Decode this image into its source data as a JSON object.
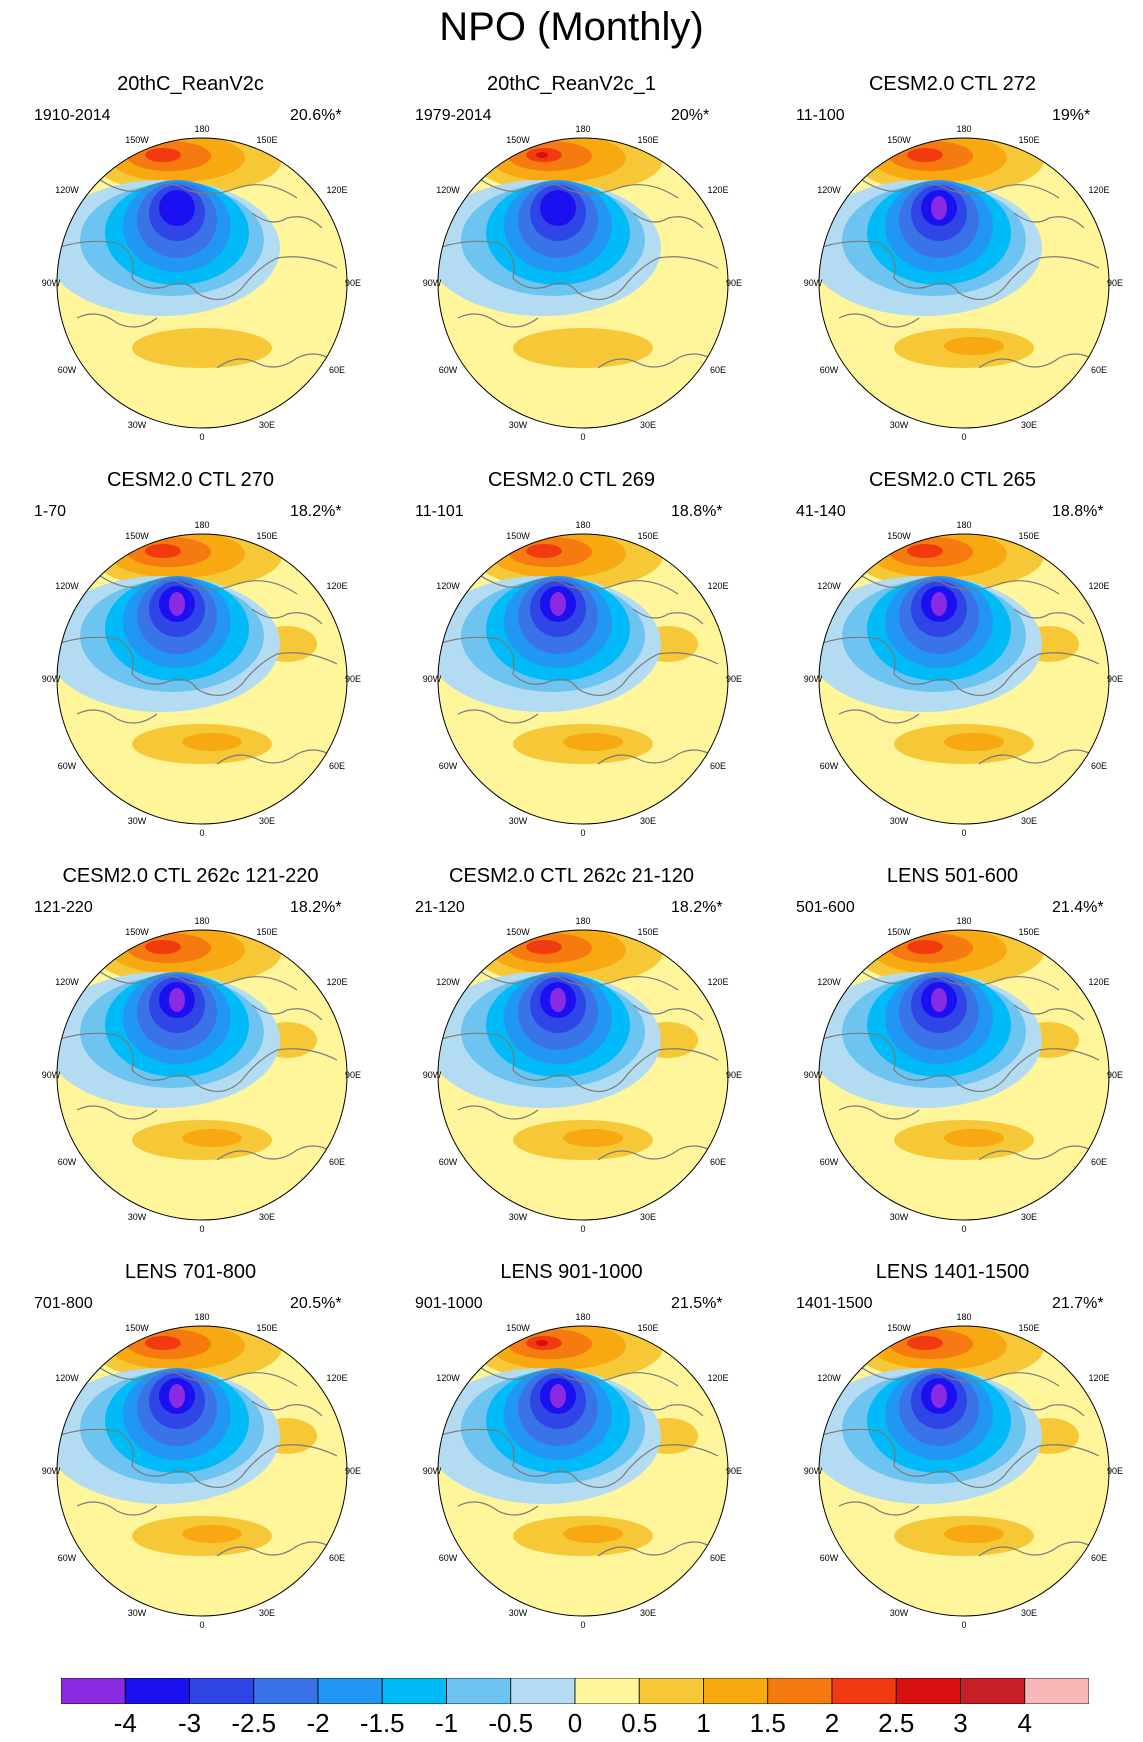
{
  "title": "NPO (Monthly)",
  "map_labels": {
    "top": "180",
    "bottom": "0",
    "left": "90W",
    "right": "90E",
    "upper_left_1": "150W",
    "upper_left_2": "120W",
    "upper_right_1": "150E",
    "upper_right_2": "120E",
    "lower_left_1": "60W",
    "lower_left_2": "30W",
    "lower_right_1": "60E",
    "lower_right_2": "30E"
  },
  "panels": [
    {
      "title": "20thC_ReanV2c",
      "period": "1910-2014",
      "variance": "20.6%*"
    },
    {
      "title": "20thC_ReanV2c_1",
      "period": "1979-2014",
      "variance": "20%*"
    },
    {
      "title": "CESM2.0 CTL 272",
      "period": "11-100",
      "variance": "19%*"
    },
    {
      "title": "CESM2.0 CTL 270",
      "period": "1-70",
      "variance": "18.2%*"
    },
    {
      "title": "CESM2.0 CTL 269",
      "period": "11-101",
      "variance": "18.8%*"
    },
    {
      "title": "CESM2.0 CTL 265",
      "period": "41-140",
      "variance": "18.8%*"
    },
    {
      "title": "CESM2.0 CTL 262c 121-220",
      "period": "121-220",
      "variance": "18.2%*"
    },
    {
      "title": "CESM2.0 CTL 262c 21-120",
      "period": "21-120",
      "variance": "18.2%*"
    },
    {
      "title": "LENS 501-600",
      "period": "501-600",
      "variance": "21.4%*"
    },
    {
      "title": "LENS 701-800",
      "period": "701-800",
      "variance": "20.5%*"
    },
    {
      "title": "LENS 901-1000",
      "period": "901-1000",
      "variance": "21.5%*"
    },
    {
      "title": "LENS 1401-1500",
      "period": "1401-1500",
      "variance": "21.7%*"
    }
  ],
  "colorbar": {
    "colors": [
      "#8a2be2",
      "#1a10f0",
      "#2f45e6",
      "#3a73e8",
      "#2196f3",
      "#00bbf7",
      "#6ec4f0",
      "#b3dcf2",
      "#fff59a",
      "#f6c838",
      "#f8a810",
      "#f57a10",
      "#f23a10",
      "#d81010",
      "#c81e28",
      "#f8b8b8"
    ],
    "labels": [
      "-4",
      "-3",
      "-2.5",
      "-2",
      "-1.5",
      "-1",
      "-0.5",
      "0",
      "0.5",
      "1",
      "1.5",
      "2",
      "2.5",
      "3",
      "4"
    ]
  },
  "colors": {
    "land_outline": "#7a7a7a",
    "map_outline": "#000000"
  }
}
